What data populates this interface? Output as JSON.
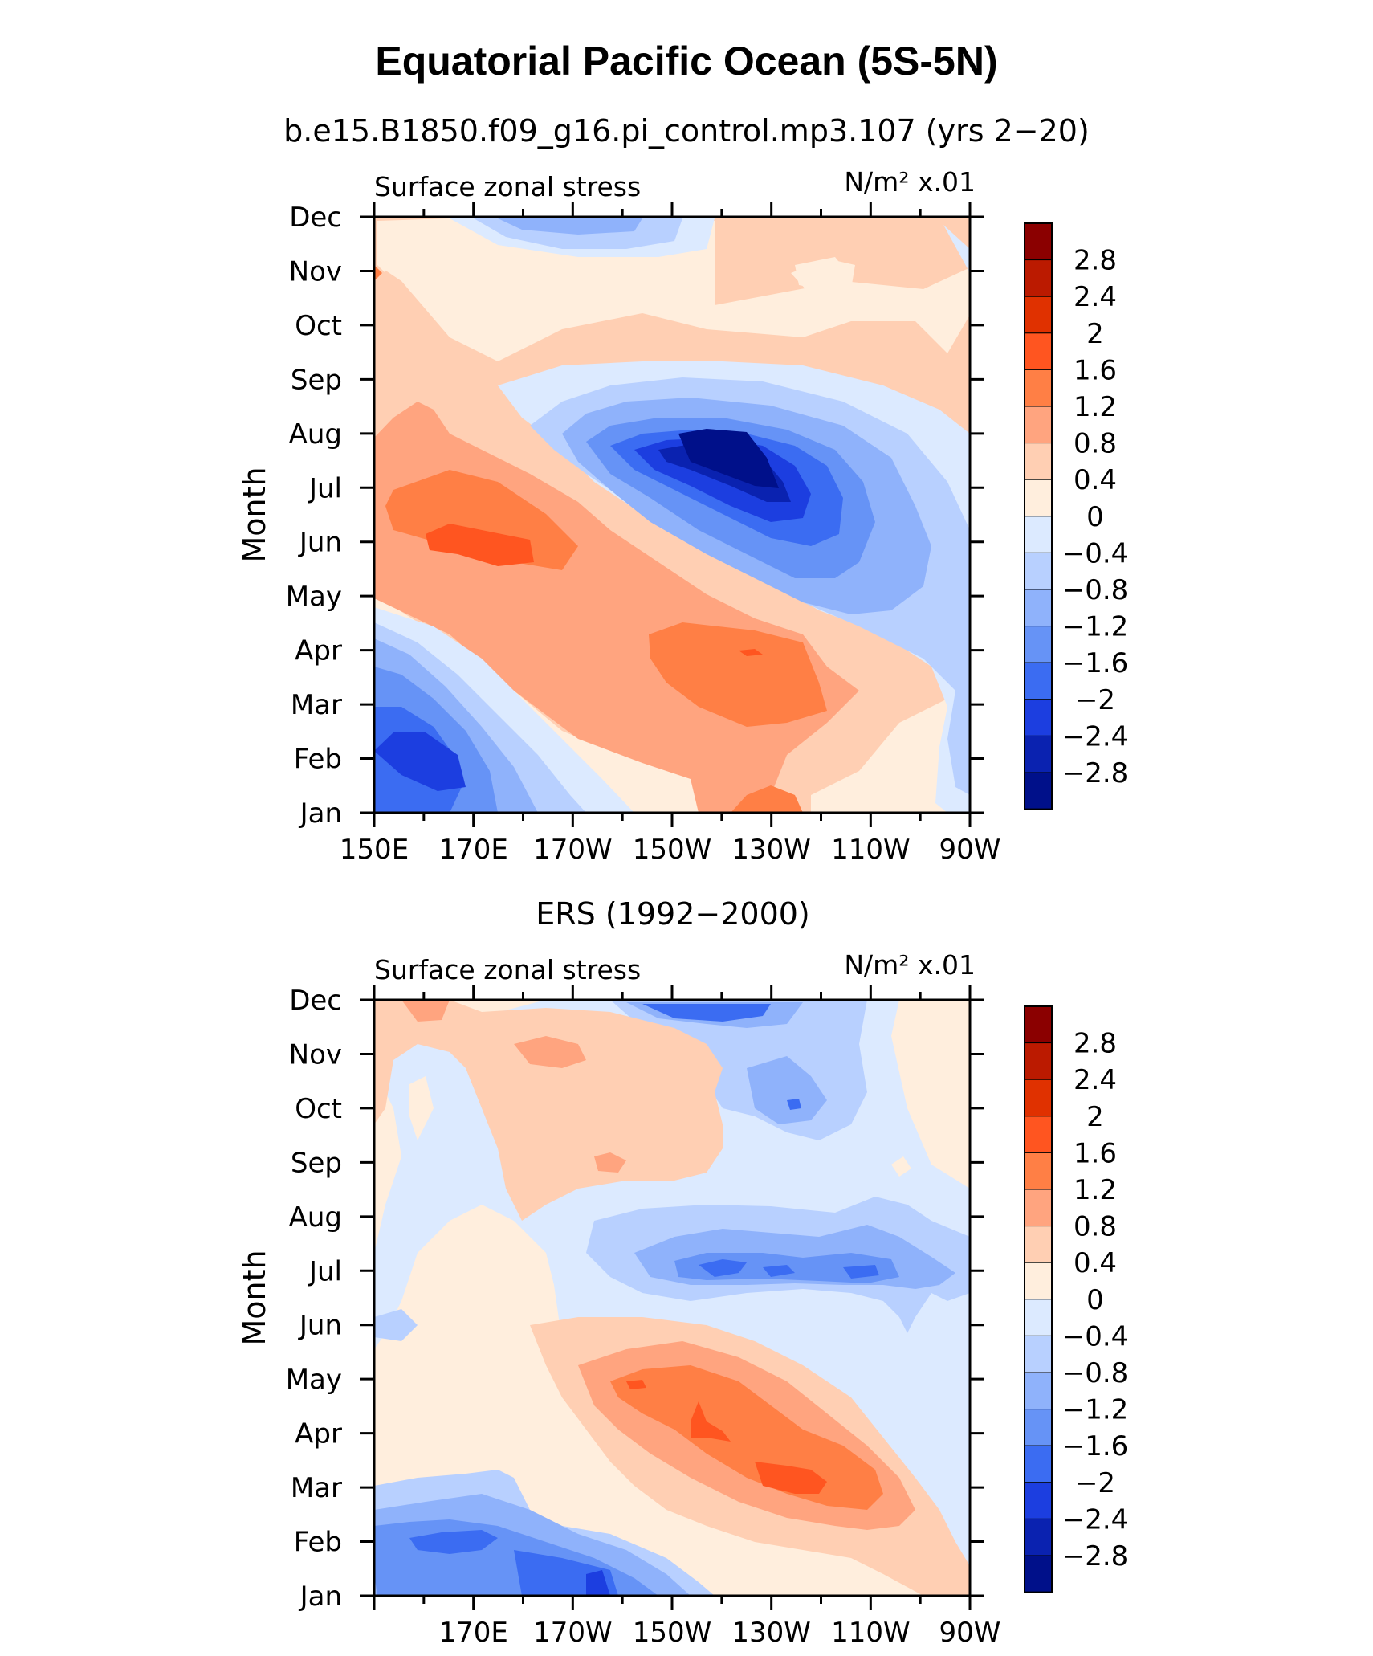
{
  "figure": {
    "title": "Equatorial Pacific Ocean (5S-5N)"
  },
  "colorbar": {
    "levels": [
      "2.8",
      "2.4",
      "2",
      "1.6",
      "1.2",
      "0.8",
      "0.4",
      "0",
      "−0.4",
      "−0.8",
      "−1.2",
      "−1.6",
      "−2",
      "−2.4",
      "−2.8"
    ],
    "colors": [
      "#8b0000",
      "#bb1a00",
      "#e03100",
      "#ff5520",
      "#ff7f45",
      "#ffa47f",
      "#ffcfb3",
      "#ffeedd",
      "#dceaff",
      "#b8d0ff",
      "#8fb2fb",
      "#6693f6",
      "#3b6cf2",
      "#1c3ee0",
      "#0a22b0",
      "#00108a"
    ]
  },
  "chart_data": [
    {
      "type": "heatmap",
      "subtitle": "b.e15.B1850.f09_g16.pi_control.mp3.107 (yrs 2−20)",
      "left_label": "Surface zonal stress",
      "units_label": "N/m² x.01",
      "ylabel": "Month",
      "xlabel": "",
      "y_ticks": [
        "Jan",
        "Feb",
        "Mar",
        "Apr",
        "May",
        "Jun",
        "Jul",
        "Aug",
        "Sep",
        "Oct",
        "Nov",
        "Dec"
      ],
      "x_ticks": [
        "150E",
        "170E",
        "170W",
        "150W",
        "130W",
        "110W",
        "90W"
      ],
      "x_range": [
        "150E",
        "90W"
      ],
      "y_range": [
        "Jan",
        "Dec"
      ],
      "contour_levels": [
        -2.8,
        -2.4,
        -2,
        -1.6,
        -1.2,
        -0.8,
        -0.4,
        0,
        0.4,
        0.8,
        1.2,
        1.6,
        2,
        2.4,
        2.8
      ],
      "features": [
        {
          "lon": 136,
          "month": "Jul-Aug",
          "value": -2.8
        },
        {
          "lon": 172,
          "month": "Jun",
          "value": 1.2
        },
        {
          "lon": 146,
          "month": "Mar-Apr",
          "value": 1.2
        },
        {
          "lon": 157,
          "month": "Feb",
          "value": -2.0
        },
        {
          "lon": 155,
          "month": "Dec",
          "value": -1.0
        }
      ]
    },
    {
      "type": "heatmap",
      "subtitle": "ERS (1992−2000)",
      "left_label": "Surface zonal stress",
      "units_label": "N/m² x.01",
      "ylabel": "Month",
      "xlabel": "",
      "y_ticks": [
        "Jan",
        "Feb",
        "Mar",
        "Apr",
        "May",
        "Jun",
        "Jul",
        "Aug",
        "Sep",
        "Oct",
        "Nov",
        "Dec"
      ],
      "x_ticks": [
        "170E",
        "170W",
        "150W",
        "130W",
        "110W",
        "90W"
      ],
      "x_range": [
        "150E",
        "90W"
      ],
      "y_range": [
        "Jan",
        "Dec"
      ],
      "contour_levels": [
        -2.8,
        -2.4,
        -2,
        -1.6,
        -1.2,
        -0.8,
        -0.4,
        0,
        0.4,
        0.8,
        1.2,
        1.6,
        2,
        2.4,
        2.8
      ],
      "features": [
        {
          "lon": 147,
          "month": "Apr",
          "value": 1.6
        },
        {
          "lon": 120,
          "month": "Mar",
          "value": 2.0
        },
        {
          "lon": 137,
          "month": "Jul",
          "value": -1.6
        },
        {
          "lon": 167,
          "month": "Jan-Feb",
          "value": -1.6
        },
        {
          "lon": 145,
          "month": "Dec",
          "value": -1.6
        }
      ]
    }
  ]
}
